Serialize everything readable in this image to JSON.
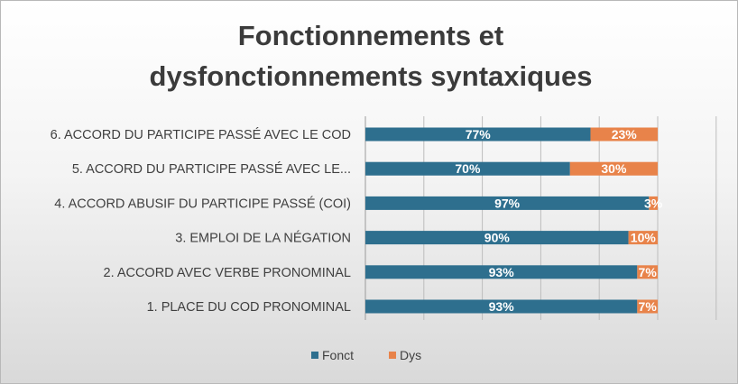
{
  "chart_data": {
    "type": "bar",
    "orientation": "horizontal",
    "stacked": "percent",
    "title_lines": [
      "Fonctionnements et",
      "dysfonctionnements syntaxiques"
    ],
    "categories": [
      "6. ACCORD DU PARTICIPE PASSÉ AVEC LE COD",
      "5. ACCORD DU PARTICIPE PASSÉ AVEC LE...",
      "4. ACCORD ABUSIF DU PARTICIPE PASSÉ (COI)",
      "3. EMPLOI DE LA NÉGATION",
      "2. ACCORD AVEC VERBE PRONOMINAL",
      "1. PLACE DU COD PRONOMINAL"
    ],
    "series": [
      {
        "name": "Fonct",
        "color": "#2e6f8e",
        "values": [
          77,
          70,
          97,
          90,
          93,
          93
        ],
        "labels": [
          "77%",
          "70%",
          "97%",
          "90%",
          "93%",
          "93%"
        ]
      },
      {
        "name": "Dys",
        "color": "#e8834a",
        "values": [
          23,
          30,
          3,
          10,
          7,
          7
        ],
        "labels": [
          "23%",
          "30%",
          "3%",
          "10%",
          "7%",
          "7%"
        ]
      }
    ],
    "xlim": [
      0,
      120
    ],
    "vertical_gridlines": [
      0,
      20,
      40,
      60,
      80,
      100,
      120
    ],
    "legend_position": "bottom"
  }
}
